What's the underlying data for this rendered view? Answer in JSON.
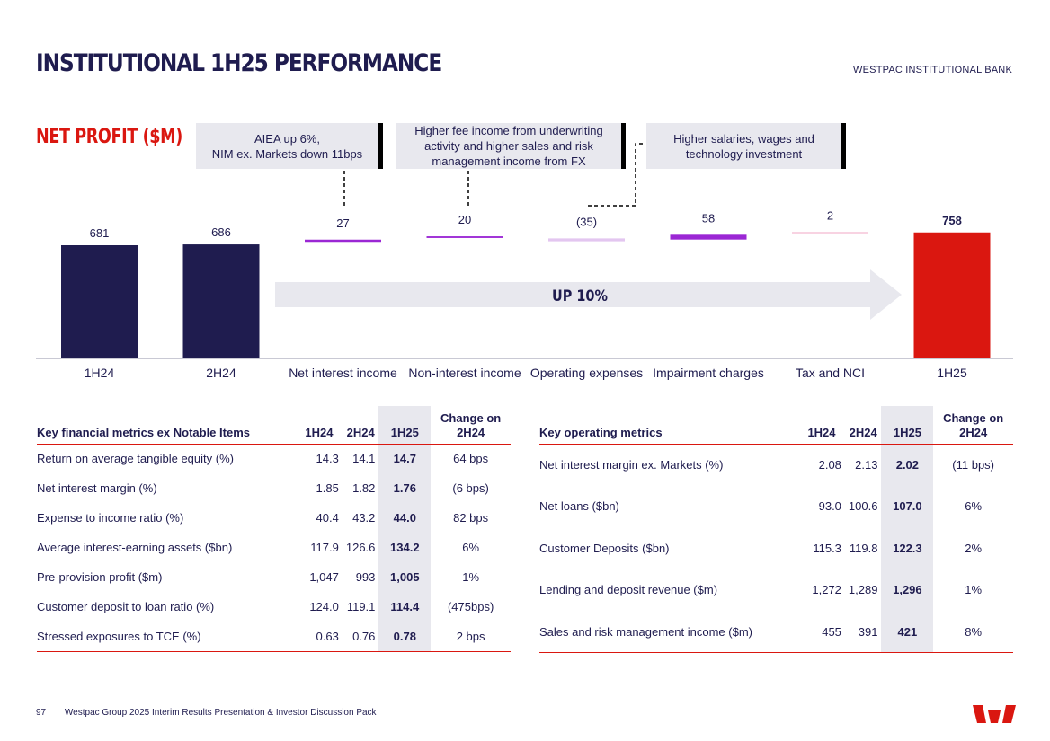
{
  "header": {
    "title": "INSTITUTIONAL 1H25 PERFORMANCE",
    "division": "WESTPAC INSTITUTIONAL BANK"
  },
  "colors": {
    "navy": "#1f1c4f",
    "red": "#da1710",
    "purple": "#9b27d4",
    "lilac": "#e3c6f0",
    "pink": "#f1a7c6",
    "grey": "#e8e8ee"
  },
  "chart_data": {
    "type": "waterfall",
    "title": "NET PROFIT ($M)",
    "categories": [
      "1H24",
      "2H24",
      "Net interest income",
      "Non-interest income",
      "Operating expenses",
      "Impairment charges",
      "Tax and NCI",
      "1H25"
    ],
    "values": [
      681,
      686,
      27,
      20,
      -35,
      58,
      2,
      758
    ],
    "labels": [
      "681",
      "686",
      "27",
      "20",
      "(35)",
      "58",
      "2",
      "758"
    ],
    "kinds": [
      "total",
      "total",
      "delta",
      "delta",
      "delta",
      "delta",
      "delta",
      "total"
    ],
    "arrow_label": "UP 10%",
    "callouts": [
      "AIEA up 6%,\nNIM ex. Markets down 11bps",
      "Higher fee income from underwriting activity and higher sales and risk management income from FX",
      "Higher salaries, wages and technology investment"
    ]
  },
  "table1": {
    "headers": [
      "Key financial metrics ex Notable Items",
      "1H24",
      "2H24",
      "1H25",
      "Change on 2H24"
    ],
    "rows": [
      [
        "Return on average tangible equity (%)",
        "14.3",
        "14.1",
        "14.7",
        "64 bps"
      ],
      [
        "Net interest margin (%)",
        "1.85",
        "1.82",
        "1.76",
        "(6 bps)"
      ],
      [
        "Expense to income ratio (%)",
        "40.4",
        "43.2",
        "44.0",
        "82 bps"
      ],
      [
        "Average interest-earning assets ($bn)",
        "117.9",
        "126.6",
        "134.2",
        "6%"
      ],
      [
        "Pre-provision profit ($m)",
        "1,047",
        "993",
        "1,005",
        "1%"
      ],
      [
        "Customer deposit to loan ratio (%)",
        "124.0",
        "119.1",
        "114.4",
        "(475bps)"
      ],
      [
        "Stressed exposures to TCE (%)",
        "0.63",
        "0.76",
        "0.78",
        "2 bps"
      ]
    ]
  },
  "table2": {
    "headers": [
      "Key operating metrics",
      "1H24",
      "2H24",
      "1H25",
      "Change on 2H24"
    ],
    "rows": [
      [
        "Net interest margin ex. Markets (%)",
        "2.08",
        "2.13",
        "2.02",
        "(11 bps)"
      ],
      [
        "Net loans ($bn)",
        "93.0",
        "100.6",
        "107.0",
        "6%"
      ],
      [
        "Customer Deposits ($bn)",
        "115.3",
        "119.8",
        "122.3",
        "2%"
      ],
      [
        "Lending and deposit revenue ($m)",
        "1,272",
        "1,289",
        "1,296",
        "1%"
      ],
      [
        "Sales and risk management income ($m)",
        "455",
        "391",
        "421",
        "8%"
      ]
    ]
  },
  "footer": {
    "page": "97",
    "text": "Westpac Group 2025 Interim Results Presentation & Investor Discussion Pack"
  }
}
